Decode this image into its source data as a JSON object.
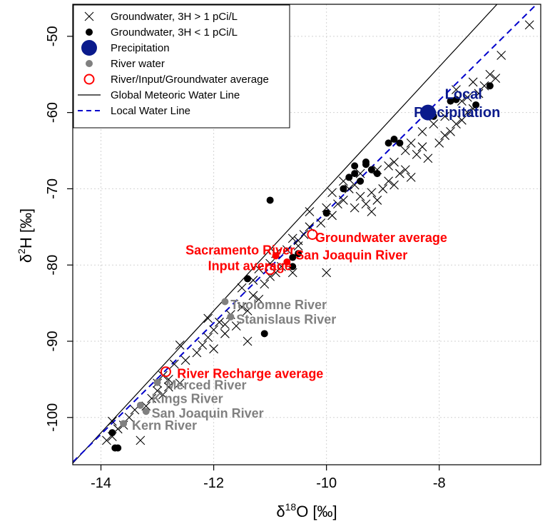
{
  "chart_data": {
    "type": "scatter",
    "xlabel": "δ18O [‰]",
    "ylabel": "δ2H [‰]",
    "xlabel_parts": {
      "base": "δ",
      "sup": "18",
      "rest": "O [‰]"
    },
    "ylabel_parts": {
      "base": "δ",
      "sup": "2",
      "rest": "H [‰]"
    },
    "xlim": [
      -14.5,
      -6.2
    ],
    "ylim": [
      -106.2,
      -45.8
    ],
    "xticks": [
      -14,
      -12,
      -10,
      -8
    ],
    "yticks": [
      -100,
      -90,
      -80,
      -70,
      -60,
      -50
    ],
    "grid": true,
    "legend_position": "top-left",
    "legend": [
      {
        "label": "Groundwater, 3H > 1 pCi/L",
        "marker": "cross",
        "color": "#000000"
      },
      {
        "label": "Groundwater, 3H < 1 pCi/L",
        "marker": "dot",
        "color": "#000000"
      },
      {
        "label": "Precipitation",
        "marker": "big-dot",
        "color": "#0a1a8c"
      },
      {
        "label": "River water",
        "marker": "dot",
        "color": "#808080"
      },
      {
        "label": "River/Input/Groundwater average",
        "marker": "open-circle",
        "color": "#ff0000"
      },
      {
        "label": "Global Meteoric Water Line",
        "marker": "line",
        "color": "#000000"
      },
      {
        "label": "Local Water Line",
        "marker": "dashed-line",
        "color": "#0000cc"
      }
    ],
    "lines": [
      {
        "name": "Global Meteoric Water Line",
        "slope": 8,
        "intercept": 10,
        "color": "#000000",
        "dash": false
      },
      {
        "name": "Local Water Line",
        "slope": 7.3,
        "intercept": 0.0,
        "color": "#0000cc",
        "dash": true
      }
    ],
    "series": [
      {
        "name": "Groundwater, 3H > 1 pCi/L",
        "marker": "cross",
        "color": "#000000",
        "points": [
          [
            -13.9,
            -103
          ],
          [
            -13.8,
            -102.5
          ],
          [
            -13.7,
            -101.5
          ],
          [
            -13.6,
            -101
          ],
          [
            -13.8,
            -100.5
          ],
          [
            -13.5,
            -100
          ],
          [
            -13.3,
            -103
          ],
          [
            -13.4,
            -99
          ],
          [
            -13.2,
            -98.5
          ],
          [
            -13.1,
            -97.5
          ],
          [
            -13.0,
            -96.5
          ],
          [
            -12.9,
            -97
          ],
          [
            -12.8,
            -96
          ],
          [
            -13.0,
            -95.5
          ],
          [
            -12.8,
            -95
          ],
          [
            -12.6,
            -95.5
          ],
          [
            -12.7,
            -93
          ],
          [
            -12.5,
            -92.5
          ],
          [
            -12.3,
            -91.5
          ],
          [
            -12.2,
            -90.5
          ],
          [
            -12.0,
            -91
          ],
          [
            -12.1,
            -89.5
          ],
          [
            -12.0,
            -88.5
          ],
          [
            -11.8,
            -89
          ],
          [
            -11.9,
            -87.5
          ],
          [
            -12.1,
            -87
          ],
          [
            -11.7,
            -86.5
          ],
          [
            -11.6,
            -88
          ],
          [
            -11.5,
            -85.5
          ],
          [
            -11.4,
            -86
          ],
          [
            -11.3,
            -84
          ],
          [
            -11.2,
            -84.5
          ],
          [
            -11.5,
            -83
          ],
          [
            -11.3,
            -82
          ],
          [
            -11.1,
            -82.5
          ],
          [
            -11.0,
            -81.5
          ],
          [
            -11.2,
            -80.5
          ],
          [
            -11.0,
            -79.8
          ],
          [
            -10.8,
            -80.2
          ],
          [
            -10.6,
            -81
          ],
          [
            -10.9,
            -78.5
          ],
          [
            -10.7,
            -78
          ],
          [
            -10.5,
            -77.5
          ],
          [
            -10.6,
            -76.5
          ],
          [
            -10.4,
            -76
          ],
          [
            -10.3,
            -75
          ],
          [
            -10.1,
            -74.5
          ],
          [
            -10.3,
            -73
          ],
          [
            -10.0,
            -72.5
          ],
          [
            -9.9,
            -73.5
          ],
          [
            -9.8,
            -72
          ],
          [
            -9.7,
            -71.5
          ],
          [
            -9.9,
            -70.5
          ],
          [
            -9.6,
            -70
          ],
          [
            -9.5,
            -69.5
          ],
          [
            -9.4,
            -71
          ],
          [
            -9.3,
            -72
          ],
          [
            -9.2,
            -70.5
          ],
          [
            -9.0,
            -70
          ],
          [
            -8.9,
            -69
          ],
          [
            -9.4,
            -68
          ],
          [
            -9.1,
            -67.5
          ],
          [
            -8.9,
            -67
          ],
          [
            -8.8,
            -66.5
          ],
          [
            -8.7,
            -68
          ],
          [
            -8.6,
            -67.5
          ],
          [
            -8.5,
            -68.5
          ],
          [
            -8.4,
            -65.5
          ],
          [
            -8.6,
            -65
          ],
          [
            -8.3,
            -64.5
          ],
          [
            -8.2,
            -66
          ],
          [
            -8.0,
            -64
          ],
          [
            -7.9,
            -63
          ],
          [
            -7.8,
            -62.5
          ],
          [
            -7.7,
            -61.5
          ],
          [
            -7.6,
            -61
          ],
          [
            -7.5,
            -60
          ],
          [
            -7.4,
            -59.5
          ],
          [
            -7.6,
            -58.5
          ],
          [
            -7.3,
            -57.5
          ],
          [
            -7.2,
            -56.5
          ],
          [
            -7.4,
            -56
          ],
          [
            -7.1,
            -55
          ],
          [
            -7.0,
            -55.5
          ],
          [
            -8.3,
            -62.5
          ],
          [
            -8.1,
            -61.5
          ],
          [
            -7.9,
            -60.5
          ],
          [
            -9.7,
            -69
          ],
          [
            -10.5,
            -76.8
          ],
          [
            -9.5,
            -72.5
          ],
          [
            -12.6,
            -90.5
          ],
          [
            -12.9,
            -94.5
          ],
          [
            -11.4,
            -90
          ],
          [
            -10.9,
            -81
          ],
          [
            -10.0,
            -81
          ],
          [
            -11.8,
            -87.8
          ],
          [
            -9.2,
            -73
          ],
          [
            -8.8,
            -69.5
          ],
          [
            -7.5,
            -58
          ],
          [
            -6.9,
            -52.5
          ],
          [
            -6.4,
            -48.5
          ],
          [
            -7.7,
            -57
          ],
          [
            -8.5,
            -64
          ],
          [
            -9.1,
            -71.5
          ]
        ]
      },
      {
        "name": "Groundwater, 3H < 1 pCi/L",
        "marker": "dot",
        "color": "#000000",
        "points": [
          [
            -13.75,
            -104
          ],
          [
            -13.7,
            -104
          ],
          [
            -13.8,
            -102
          ],
          [
            -11.0,
            -71.5
          ],
          [
            -11.1,
            -89
          ],
          [
            -10.6,
            -80.2
          ],
          [
            -10.6,
            -79
          ],
          [
            -10.5,
            -78.5
          ],
          [
            -10.0,
            -73.2
          ],
          [
            -9.7,
            -70
          ],
          [
            -9.6,
            -68.5
          ],
          [
            -9.5,
            -68
          ],
          [
            -9.4,
            -69
          ],
          [
            -9.3,
            -66.8
          ],
          [
            -9.2,
            -67.5
          ],
          [
            -9.1,
            -68
          ],
          [
            -9.5,
            -67
          ],
          [
            -8.9,
            -64
          ],
          [
            -8.8,
            -63.5
          ],
          [
            -8.7,
            -64
          ],
          [
            -8.1,
            -60.5
          ],
          [
            -7.8,
            -58.5
          ],
          [
            -7.7,
            -58.3
          ],
          [
            -7.35,
            -59
          ],
          [
            -7.1,
            -56.5
          ],
          [
            -11.4,
            -81.8
          ],
          [
            -9.3,
            -66.5
          ]
        ]
      },
      {
        "name": "Precipitation",
        "marker": "big-dot",
        "color": "#0a1a8c",
        "points": [
          [
            -8.2,
            -60
          ]
        ]
      },
      {
        "name": "River water",
        "marker": "dot",
        "color": "#808080",
        "points": [
          [
            -11.8,
            -84.8
          ],
          [
            -11.7,
            -86.8
          ],
          [
            -13.0,
            -95.4
          ],
          [
            -13.3,
            -98.4
          ],
          [
            -13.2,
            -99.2
          ],
          [
            -13.6,
            -100.8
          ]
        ]
      },
      {
        "name": "River water (San Joaquin / Sacramento)",
        "marker": "dot",
        "color": "#ff0000",
        "points": [
          [
            -10.9,
            -78.8
          ],
          [
            -10.7,
            -79.6
          ]
        ]
      },
      {
        "name": "River/Input/Groundwater average",
        "marker": "open-circle",
        "color": "#ff0000",
        "points": [
          [
            -10.25,
            -76
          ],
          [
            -11.0,
            -80.6
          ],
          [
            -12.85,
            -94
          ]
        ]
      }
    ],
    "annotations": [
      {
        "text": "Local",
        "x": -7.9,
        "y": -58.2,
        "color": "#0a1a8c",
        "size": 20
      },
      {
        "text": "Precipitation",
        "x": -8.45,
        "y": -60.6,
        "color": "#0a1a8c",
        "size": 20
      },
      {
        "text": "Groundwater average",
        "x": -10.2,
        "y": -77.0,
        "color": "#ff0000",
        "size": 18
      },
      {
        "text": "Sacramento River",
        "x": -12.5,
        "y": -78.6,
        "color": "#ff0000",
        "size": 18
      },
      {
        "text": "Input average",
        "x": -12.1,
        "y": -80.7,
        "color": "#ff0000",
        "size": 18
      },
      {
        "text": "San Joaquin River",
        "x": -10.55,
        "y": -79.3,
        "color": "#ff0000",
        "size": 18
      },
      {
        "text": "Tuolomne River",
        "x": -11.7,
        "y": -85.8,
        "color": "#808080",
        "size": 18
      },
      {
        "text": "Stanislaus River",
        "x": -11.6,
        "y": -87.7,
        "color": "#808080",
        "size": 18
      },
      {
        "text": "River Recharge average",
        "x": -12.65,
        "y": -94.8,
        "color": "#ff0000",
        "size": 18
      },
      {
        "text": "Merced River",
        "x": -12.85,
        "y": -96.3,
        "color": "#808080",
        "size": 18
      },
      {
        "text": "Kings River",
        "x": -13.1,
        "y": -98.1,
        "color": "#808080",
        "size": 18
      },
      {
        "text": "San Joaquin River",
        "x": -13.1,
        "y": -100.0,
        "color": "#808080",
        "size": 18
      },
      {
        "text": "Kern River",
        "x": -13.45,
        "y": -101.6,
        "color": "#808080",
        "size": 18
      }
    ]
  }
}
